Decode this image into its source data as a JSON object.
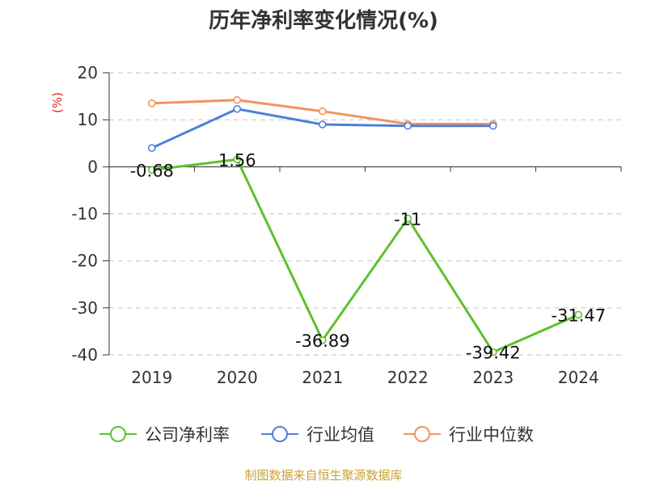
{
  "chart_data": {
    "type": "line",
    "title": "历年净利率变化情况(%)",
    "ylabel": "(%)",
    "xlabel": "",
    "categories": [
      "2019",
      "2020",
      "2021",
      "2022",
      "2023",
      "2024"
    ],
    "yticks": [
      "20",
      "10",
      "0",
      "-10",
      "-20",
      "-30",
      "-40"
    ],
    "ylim": [
      -40,
      20
    ],
    "grid": true,
    "legend": "bottom",
    "series": [
      {
        "name": "公司净利率",
        "color": "#5ec12c",
        "values": [
          -0.68,
          1.56,
          -36.89,
          -11,
          -39.42,
          -31.47
        ],
        "labels": [
          "-0.68",
          "1.56",
          "-36.89",
          "-11",
          "-39.42",
          "-31.47"
        ]
      },
      {
        "name": "行业均值",
        "color": "#4f7fdb",
        "values": [
          4,
          12.3,
          9,
          8.7,
          8.7,
          null
        ]
      },
      {
        "name": "行业中位数",
        "color": "#f4925e",
        "values": [
          13.5,
          14.2,
          11.8,
          9.1,
          9.1,
          null
        ]
      }
    ]
  },
  "source": {
    "text": "制图数据来自恒生聚源数据库",
    "color": "#c8a236"
  },
  "colors": {
    "ylabel": "#e02020",
    "axis": "#333333",
    "grid": "#cccccc"
  }
}
